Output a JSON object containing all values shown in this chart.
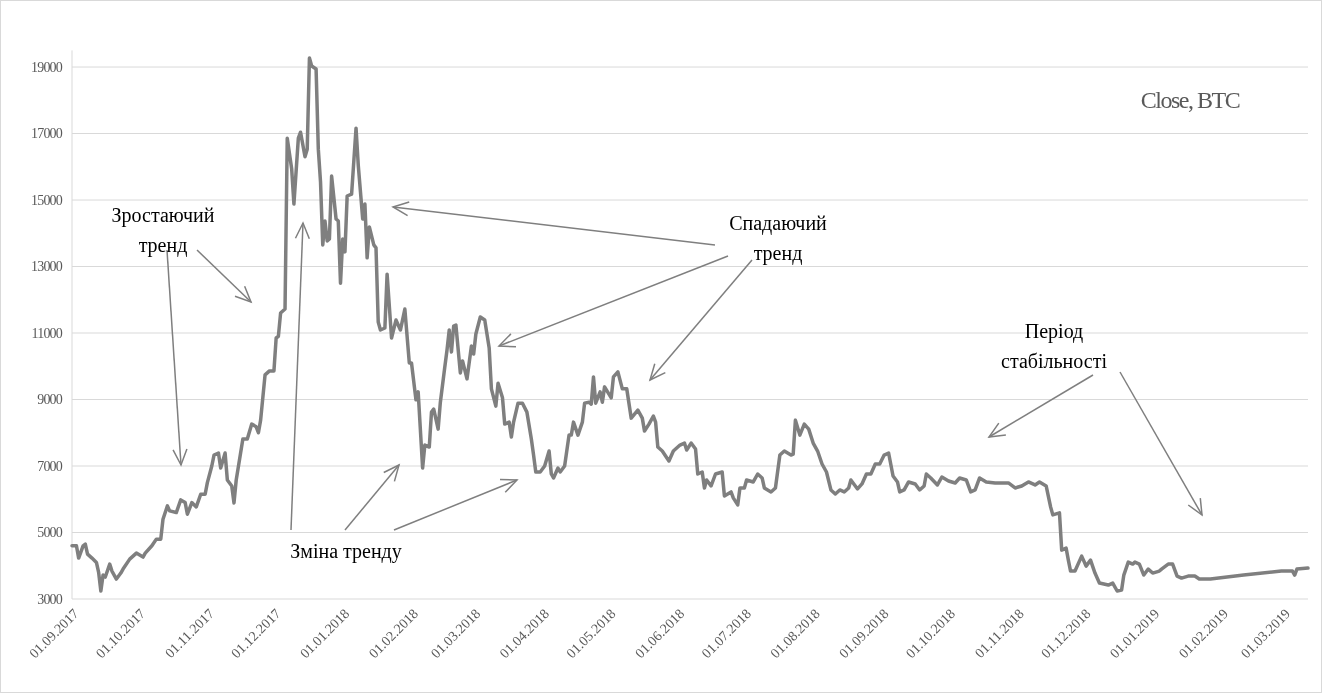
{
  "chart_data": {
    "type": "line",
    "title": "Close, BTC",
    "x": [
      "2017-09-01",
      "2017-09-03",
      "2017-09-04",
      "2017-09-06",
      "2017-09-07",
      "2017-09-08",
      "2017-09-10",
      "2017-09-12",
      "2017-09-13",
      "2017-09-14",
      "2017-09-15",
      "2017-09-16",
      "2017-09-18",
      "2017-09-19",
      "2017-09-21",
      "2017-09-23",
      "2017-09-24",
      "2017-09-27",
      "2017-09-30",
      "2017-10-03",
      "2017-10-04",
      "2017-10-07",
      "2017-10-09",
      "2017-10-11",
      "2017-10-12",
      "2017-10-14",
      "2017-10-15",
      "2017-10-18",
      "2017-10-20",
      "2017-10-22",
      "2017-10-23",
      "2017-10-25",
      "2017-10-27",
      "2017-10-29",
      "2017-10-31",
      "2017-11-01",
      "2017-11-03",
      "2017-11-04",
      "2017-11-06",
      "2017-11-07",
      "2017-11-09",
      "2017-11-10",
      "2017-11-12",
      "2017-11-13",
      "2017-11-14",
      "2017-11-17",
      "2017-11-19",
      "2017-11-21",
      "2017-11-23",
      "2017-11-24",
      "2017-11-25",
      "2017-11-27",
      "2017-11-29",
      "2017-12-01",
      "2017-12-02",
      "2017-12-03",
      "2017-12-04",
      "2017-12-06",
      "2017-12-07",
      "2017-12-09",
      "2017-12-10",
      "2017-12-12",
      "2017-12-13",
      "2017-12-15",
      "2017-12-16",
      "2017-12-17",
      "2017-12-18",
      "2017-12-20",
      "2017-12-21",
      "2017-12-22",
      "2017-12-23",
      "2017-12-24",
      "2017-12-25",
      "2017-12-26",
      "2017-12-27",
      "2017-12-29",
      "2017-12-30",
      "2017-12-31",
      "2018-01-01",
      "2018-01-02",
      "2018-01-03",
      "2018-01-05",
      "2018-01-07",
      "2018-01-08",
      "2018-01-10",
      "2018-01-11",
      "2018-01-12",
      "2018-01-13",
      "2018-01-15",
      "2018-01-16",
      "2018-01-17",
      "2018-01-18",
      "2018-01-20",
      "2018-01-21",
      "2018-01-23",
      "2018-01-25",
      "2018-01-27",
      "2018-01-29",
      "2018-01-31",
      "2018-02-01",
      "2018-02-03",
      "2018-02-04",
      "2018-02-06",
      "2018-02-07",
      "2018-02-09",
      "2018-02-10",
      "2018-02-11",
      "2018-02-13",
      "2018-02-14",
      "2018-02-16",
      "2018-02-17",
      "2018-02-18",
      "2018-02-19",
      "2018-02-20",
      "2018-02-21",
      "2018-02-23",
      "2018-02-24",
      "2018-02-26",
      "2018-02-28",
      "2018-03-01",
      "2018-03-02",
      "2018-03-04",
      "2018-03-06",
      "2018-03-08",
      "2018-03-09",
      "2018-03-11",
      "2018-03-12",
      "2018-03-14",
      "2018-03-15",
      "2018-03-17",
      "2018-03-18",
      "2018-03-19",
      "2018-03-21",
      "2018-03-23",
      "2018-03-25",
      "2018-03-27",
      "2018-03-28",
      "2018-03-29",
      "2018-03-31",
      "2018-04-02",
      "2018-04-04",
      "2018-04-05",
      "2018-04-06",
      "2018-04-08",
      "2018-04-09",
      "2018-04-11",
      "2018-04-13",
      "2018-04-14",
      "2018-04-15",
      "2018-04-17",
      "2018-04-19",
      "2018-04-20",
      "2018-04-22",
      "2018-04-23",
      "2018-04-24",
      "2018-04-25",
      "2018-04-27",
      "2018-04-28",
      "2018-04-29",
      "2018-05-02",
      "2018-05-03",
      "2018-05-05",
      "2018-05-07",
      "2018-05-09",
      "2018-05-11",
      "2018-05-14",
      "2018-05-16",
      "2018-05-17",
      "2018-05-19",
      "2018-05-21",
      "2018-05-22",
      "2018-05-23",
      "2018-05-25",
      "2018-05-28",
      "2018-05-30",
      "2018-06-02",
      "2018-06-04",
      "2018-06-05",
      "2018-06-07",
      "2018-06-09",
      "2018-06-10",
      "2018-06-12",
      "2018-06-13",
      "2018-06-14",
      "2018-06-16",
      "2018-06-18",
      "2018-06-21",
      "2018-06-22",
      "2018-06-25",
      "2018-06-26",
      "2018-06-28",
      "2018-06-29",
      "2018-07-01",
      "2018-07-02",
      "2018-07-05",
      "2018-07-07",
      "2018-07-09",
      "2018-07-10",
      "2018-07-13",
      "2018-07-15",
      "2018-07-17",
      "2018-07-19",
      "2018-07-22",
      "2018-07-23",
      "2018-07-24",
      "2018-07-26",
      "2018-07-28",
      "2018-07-30",
      "2018-08-01",
      "2018-08-03",
      "2018-08-05",
      "2018-08-07",
      "2018-08-09",
      "2018-08-11",
      "2018-08-13",
      "2018-08-15",
      "2018-08-17",
      "2018-08-18",
      "2018-08-21",
      "2018-08-23",
      "2018-08-25",
      "2018-08-27",
      "2018-08-29",
      "2018-08-31",
      "2018-09-02",
      "2018-09-04",
      "2018-09-06",
      "2018-09-08",
      "2018-09-09",
      "2018-09-11",
      "2018-09-13",
      "2018-09-16",
      "2018-09-18",
      "2018-09-20",
      "2018-09-21",
      "2018-09-23",
      "2018-09-26",
      "2018-09-28",
      "2018-10-01",
      "2018-10-04",
      "2018-10-06",
      "2018-10-09",
      "2018-10-11",
      "2018-10-13",
      "2018-10-15",
      "2018-10-18",
      "2018-10-22",
      "2018-10-28",
      "2018-10-31",
      "2018-11-03",
      "2018-11-06",
      "2018-11-09",
      "2018-11-11",
      "2018-11-14",
      "2018-11-16",
      "2018-11-17",
      "2018-11-20",
      "2018-11-21",
      "2018-11-23",
      "2018-11-24",
      "2018-11-25",
      "2018-11-27",
      "2018-11-30",
      "2018-12-02",
      "2018-12-04",
      "2018-12-06",
      "2018-12-08",
      "2018-12-10",
      "2018-12-12",
      "2018-12-14",
      "2018-12-16",
      "2018-12-18",
      "2018-12-19",
      "2018-12-21",
      "2018-12-23",
      "2018-12-24",
      "2018-12-26",
      "2018-12-28",
      "2018-12-30",
      "2019-01-01",
      "2019-01-04",
      "2019-01-05",
      "2019-01-08",
      "2019-01-10",
      "2019-01-12",
      "2019-01-14",
      "2019-01-17",
      "2019-01-20",
      "2019-01-22",
      "2019-01-27",
      "2019-02-11",
      "2019-02-28",
      "2019-03-05",
      "2019-03-06",
      "2019-03-07",
      "2019-03-12"
    ],
    "series": [
      {
        "color": "#7f7f7f",
        "values": [
          4600,
          4600,
          4230,
          4600,
          4650,
          4350,
          4230,
          4100,
          3800,
          3240,
          3720,
          3660,
          4050,
          3840,
          3600,
          3780,
          3900,
          4200,
          4380,
          4260,
          4380,
          4600,
          4800,
          4800,
          5400,
          5800,
          5650,
          5600,
          5980,
          5900,
          5550,
          5900,
          5770,
          6150,
          6150,
          6500,
          7000,
          7330,
          7390,
          6940,
          7390,
          6580,
          6400,
          5890,
          6580,
          7810,
          7810,
          8260,
          8180,
          8000,
          8380,
          9740,
          9860,
          9860,
          10850,
          10900,
          11600,
          11720,
          16860,
          15930,
          14880,
          16860,
          17040,
          16300,
          16530,
          19270,
          19030,
          18940,
          16530,
          15540,
          13650,
          14370,
          13770,
          13830,
          15720,
          14430,
          14370,
          12500,
          13830,
          13440,
          15120,
          15180,
          17160,
          16050,
          14430,
          14880,
          13260,
          14190,
          13650,
          13560,
          11330,
          11090,
          11150,
          12770,
          10850,
          11390,
          11090,
          11720,
          10100,
          10100,
          8990,
          9230,
          6940,
          7630,
          7570,
          8620,
          8710,
          8110,
          8920,
          9980,
          10490,
          11090,
          10430,
          11210,
          11240,
          9800,
          10160,
          9620,
          10610,
          10370,
          10970,
          11480,
          11390,
          10550,
          9320,
          8800,
          9490,
          9050,
          8260,
          8320,
          7870,
          8320,
          8890,
          8890,
          8620,
          7810,
          7330,
          6820,
          6820,
          7000,
          7450,
          6760,
          6640,
          6940,
          6820,
          7000,
          7930,
          7930,
          8320,
          7930,
          8320,
          8890,
          8920,
          8860,
          9680,
          8890,
          9230,
          8920,
          9380,
          9050,
          9680,
          9830,
          9320,
          9320,
          8440,
          8680,
          8440,
          8050,
          8260,
          8500,
          8320,
          7570,
          7450,
          7150,
          7450,
          7630,
          7690,
          7480,
          7690,
          7510,
          6760,
          6820,
          6340,
          6580,
          6400,
          6760,
          6820,
          6100,
          6220,
          6040,
          5830,
          6340,
          6340,
          6580,
          6520,
          6760,
          6640,
          6340,
          6220,
          6340,
          7330,
          7450,
          7330,
          7360,
          8380,
          7930,
          8260,
          8110,
          7690,
          7450,
          7060,
          6820,
          6280,
          6160,
          6280,
          6220,
          6340,
          6580,
          6310,
          6460,
          6760,
          6760,
          7060,
          7060,
          7330,
          7390,
          6700,
          6520,
          6220,
          6280,
          6520,
          6460,
          6280,
          6400,
          6760,
          6640,
          6430,
          6670,
          6550,
          6490,
          6640,
          6580,
          6220,
          6280,
          6640,
          6520,
          6490,
          6490,
          6340,
          6400,
          6520,
          6430,
          6520,
          6400,
          5770,
          5530,
          5590,
          4470,
          4530,
          4170,
          3840,
          3840,
          4290,
          3990,
          4170,
          3780,
          3480,
          3450,
          3420,
          3480,
          3240,
          3270,
          3720,
          4110,
          4050,
          4110,
          4050,
          3720,
          3900,
          3780,
          3840,
          3900,
          4050,
          4050,
          3690,
          3630,
          3690,
          3690,
          3600,
          3600,
          3720,
          3840,
          3840,
          3720,
          3900,
          3930
        ]
      }
    ],
    "xlim": [
      "2017-09-01",
      "2019-03-12"
    ],
    "xticks": [
      {
        "value": "2017-09-01",
        "label": "01.09.2017"
      },
      {
        "value": "2017-10-01",
        "label": "01.10.2017"
      },
      {
        "value": "2017-11-01",
        "label": "01.11.2017"
      },
      {
        "value": "2017-12-01",
        "label": "01.12.2017"
      },
      {
        "value": "2018-01-01",
        "label": "01.01.2018"
      },
      {
        "value": "2018-02-01",
        "label": "01.02.2018"
      },
      {
        "value": "2018-03-01",
        "label": "01.03.2018"
      },
      {
        "value": "2018-04-01",
        "label": "01.04.2018"
      },
      {
        "value": "2018-05-01",
        "label": "01.05.2018"
      },
      {
        "value": "2018-06-01",
        "label": "01.06.2018"
      },
      {
        "value": "2018-07-01",
        "label": "01.07.2018"
      },
      {
        "value": "2018-08-01",
        "label": "01.08.2018"
      },
      {
        "value": "2018-09-01",
        "label": "01.09.2018"
      },
      {
        "value": "2018-10-01",
        "label": "01.10.2018"
      },
      {
        "value": "2018-11-01",
        "label": "01.11.2018"
      },
      {
        "value": "2018-12-01",
        "label": "01.12.2018"
      },
      {
        "value": "2019-01-01",
        "label": "01.01.2019"
      },
      {
        "value": "2019-02-01",
        "label": "01.02.2019"
      },
      {
        "value": "2019-03-01",
        "label": "01.03.2019"
      }
    ],
    "ylim": [
      3000,
      19500
    ],
    "yticks": [
      3000,
      5000,
      7000,
      9000,
      11000,
      13000,
      15000,
      17000,
      19000
    ],
    "grid": "y",
    "annotations": [
      "Зростаючий тренд",
      "Спадаючий тренд",
      "Зміна тренду",
      "Період стабільності"
    ]
  }
}
